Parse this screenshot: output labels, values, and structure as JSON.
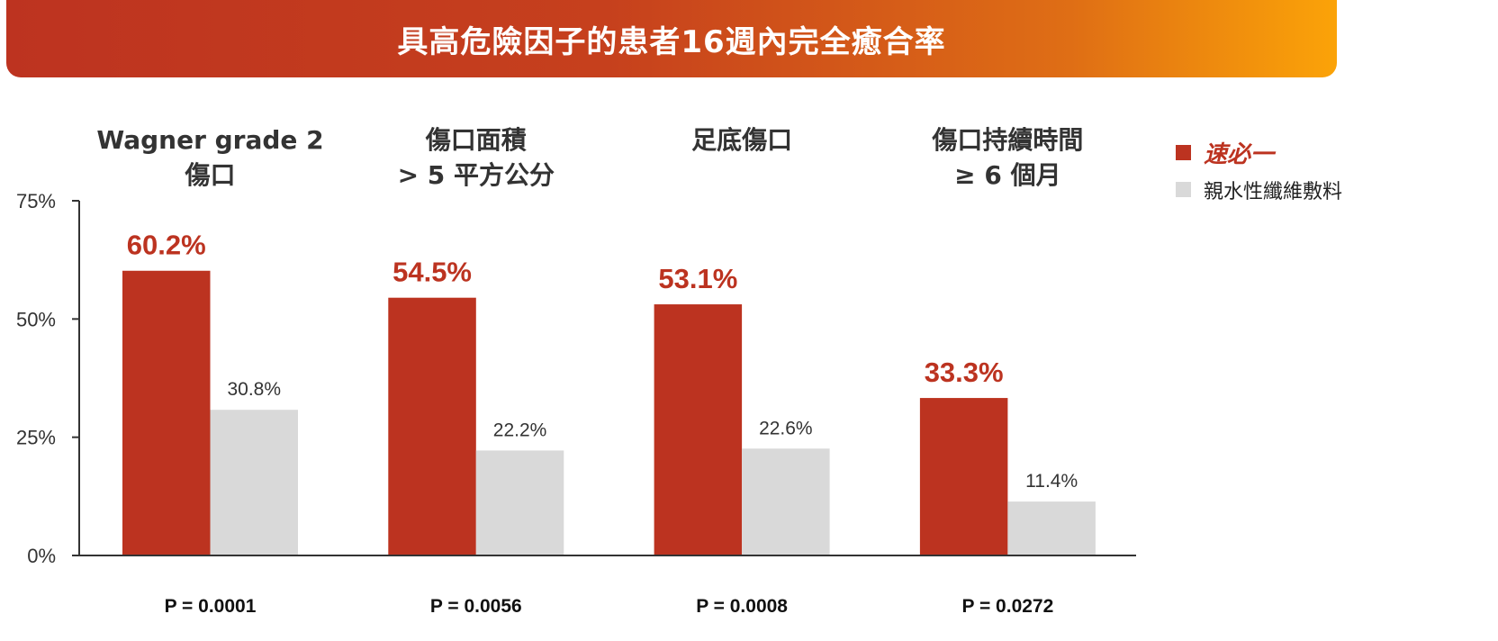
{
  "header": {
    "title": "具高危險因子的患者16週內完全癒合率"
  },
  "colors": {
    "primary": "#bc3320",
    "comparator": "#d9d9d9",
    "axis": "#333333"
  },
  "chart_data": {
    "type": "bar",
    "title": "具高危險因子的患者16週內完全癒合率",
    "categories": [
      [
        "Wagner grade 2",
        "傷口"
      ],
      [
        "傷口面積",
        "> 5 平方公分"
      ],
      [
        "足底傷口"
      ],
      [
        "傷口持續時間",
        "≥ 6 個月"
      ]
    ],
    "series": [
      {
        "name": "速必一",
        "values": [
          60.2,
          54.5,
          53.1,
          33.3
        ],
        "labels": [
          "60.2%",
          "54.5%",
          "53.1%",
          "33.3%"
        ]
      },
      {
        "name": "親水性纖維敷料",
        "values": [
          30.8,
          22.2,
          22.6,
          11.4
        ],
        "labels": [
          "30.8%",
          "22.2%",
          "22.6%",
          "11.4%"
        ]
      }
    ],
    "p_values": [
      "P = 0.0001",
      "P = 0.0056",
      "P = 0.0008",
      "P = 0.0272"
    ],
    "yticks": [
      "0%",
      "25%",
      "50%",
      "75%"
    ],
    "ylim": [
      0,
      75
    ],
    "xlabel": "",
    "ylabel": "",
    "legend_position": "top-right",
    "grid": false
  }
}
